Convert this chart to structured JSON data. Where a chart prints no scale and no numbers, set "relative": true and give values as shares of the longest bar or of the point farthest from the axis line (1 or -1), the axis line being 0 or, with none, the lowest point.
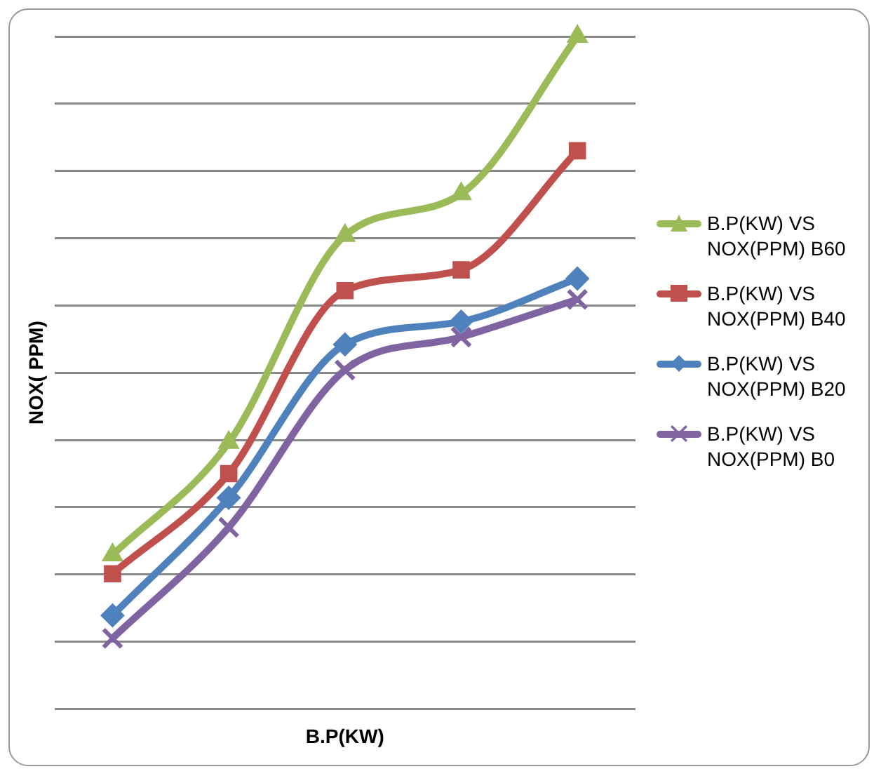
{
  "chart_data": {
    "type": "line",
    "relative": true,
    "xlabel": "B.P(KW)",
    "ylabel": "NOX( PPM)",
    "categories": [
      null,
      null,
      null,
      null,
      null
    ],
    "grid": "y",
    "legend": "right",
    "line_style": "solid",
    "series": [
      {
        "name": "B.P(KW) VS NOX(PPM) B60",
        "color": "#9bbb59",
        "marker": "triangle",
        "values": [
          0.229,
          0.396,
          0.704,
          0.766,
          1
        ]
      },
      {
        "name": "B.P(KW) VS NOX(PPM) B40",
        "color": "#c0504d",
        "marker": "square",
        "values": [
          0.201,
          0.35,
          0.622,
          0.653,
          0.83
        ]
      },
      {
        "name": "B.P(KW) VS NOX(PPM) B20",
        "color": "#4f81bd",
        "marker": "diamond",
        "values": [
          0.139,
          0.314,
          0.542,
          0.576,
          0.64
        ]
      },
      {
        "name": "B.P(KW) VS NOX(PPM) B0",
        "color": "#8064a2",
        "marker": "cross",
        "values": [
          0.105,
          0.27,
          0.504,
          0.553,
          0.609
        ]
      }
    ]
  }
}
